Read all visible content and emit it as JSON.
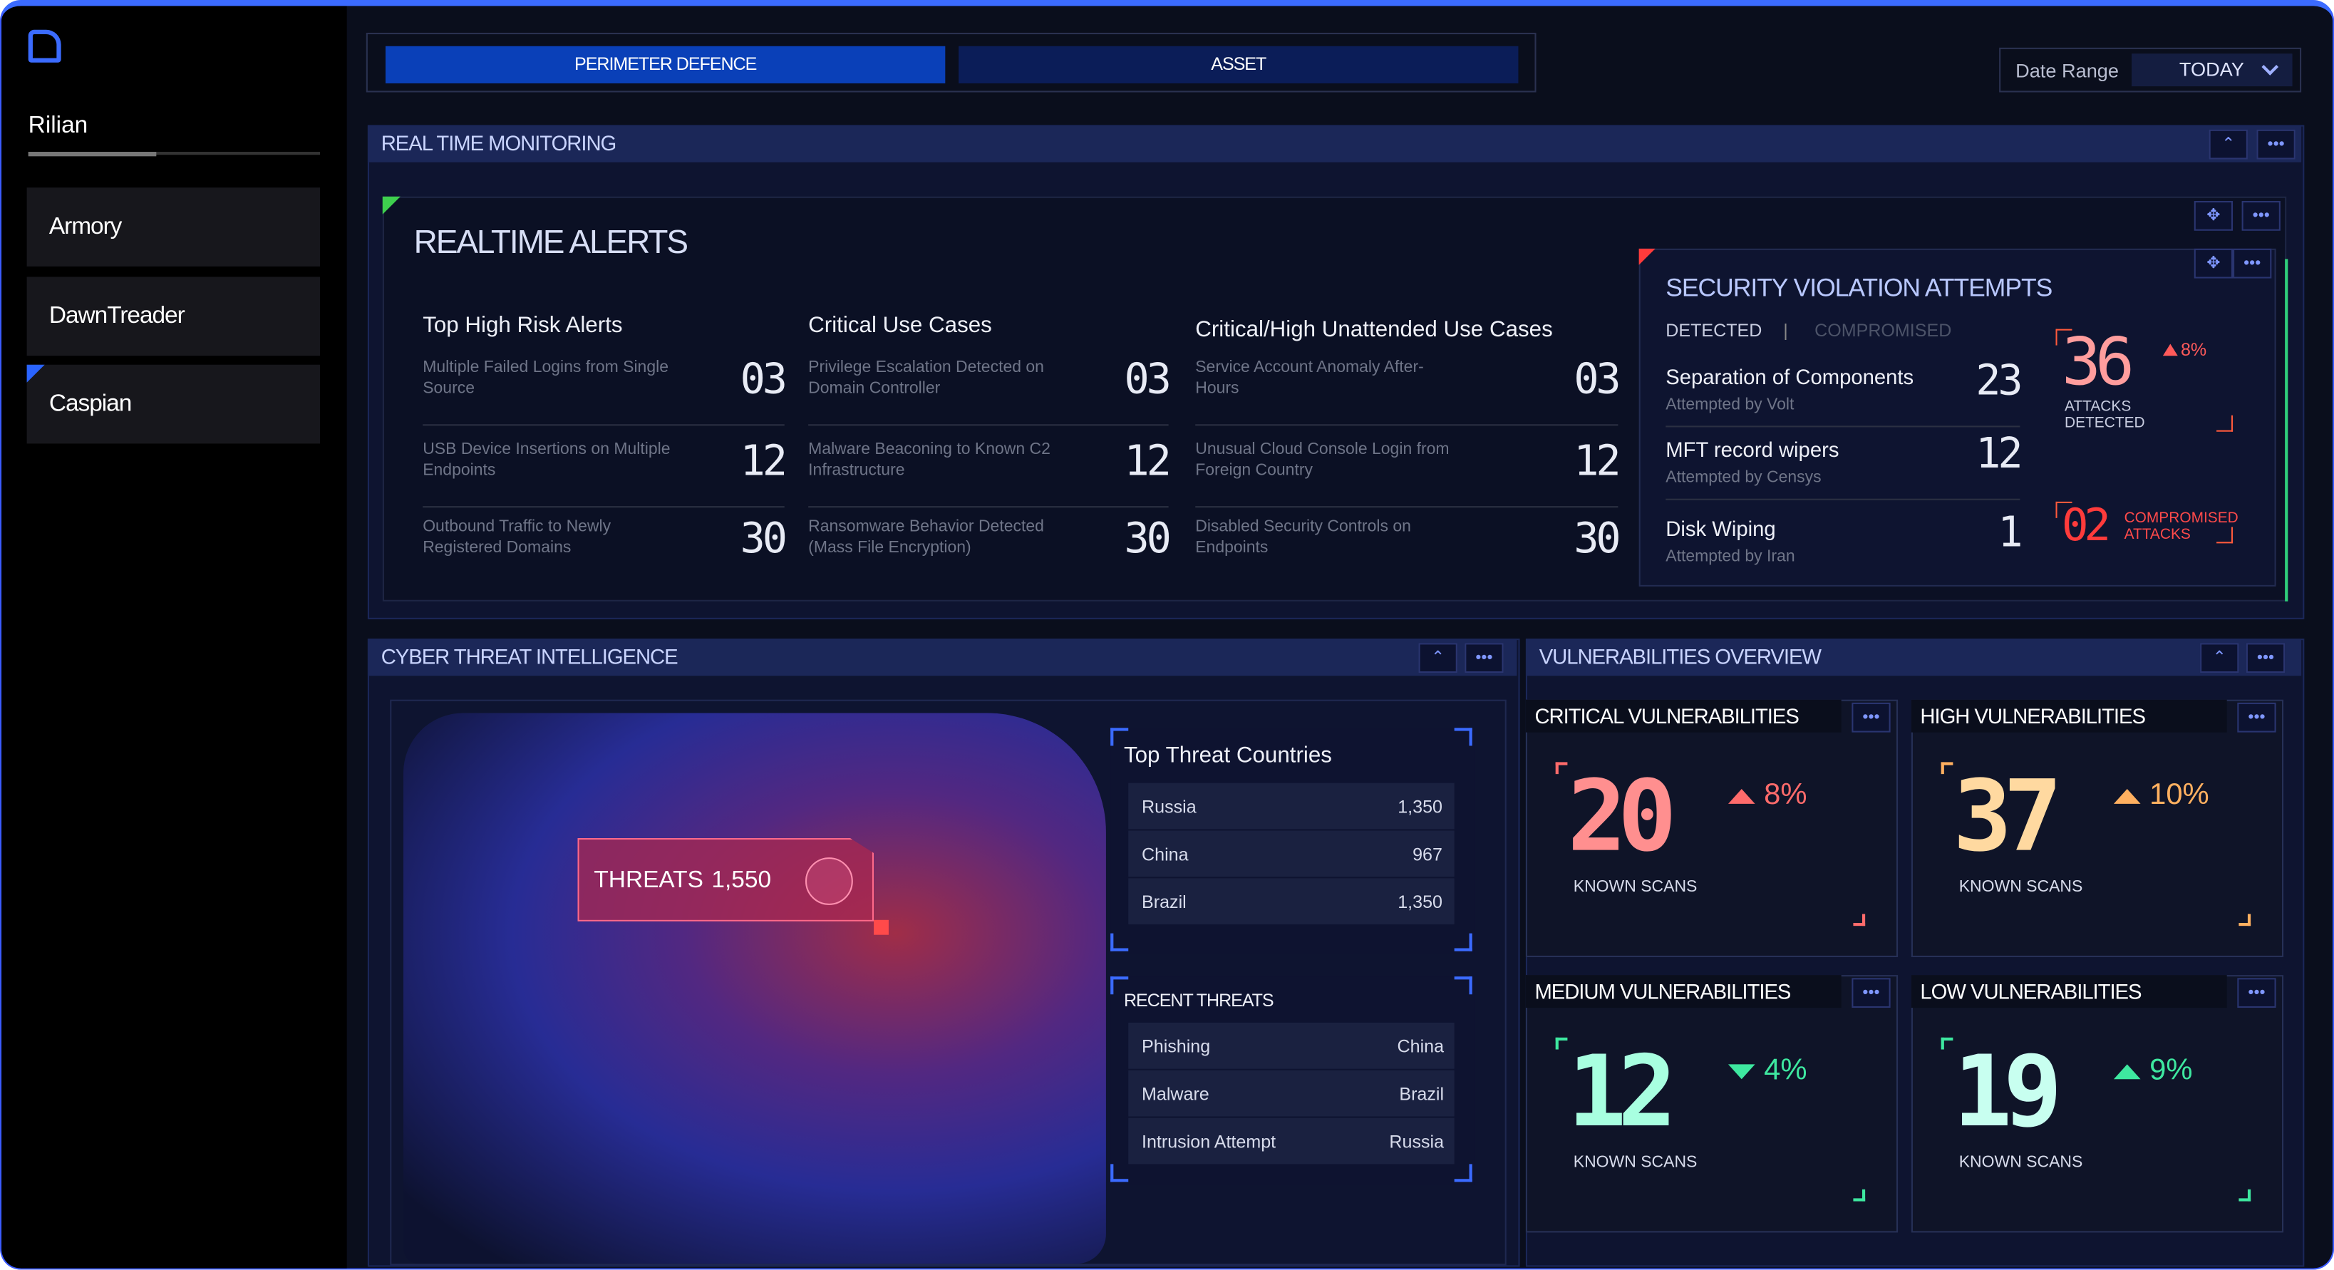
{
  "sidebar": {
    "brand": "Rilian",
    "items": [
      "Armory",
      "DawnTreader",
      "Caspian"
    ]
  },
  "tabs": [
    "PERIMETER DEFENCE",
    "ASSET"
  ],
  "date_range": {
    "label": "Date Range",
    "value": "TODAY"
  },
  "realtime_monitoring": {
    "title": "REAL TIME MONITORING",
    "alerts_title": "REALTIME ALERTS",
    "columns": [
      {
        "title": "Top High Risk Alerts",
        "items": [
          {
            "label": "Multiple Failed Logins from Single Source",
            "count": "03"
          },
          {
            "label": "USB Device Insertions on Multiple Endpoints",
            "count": "12"
          },
          {
            "label": "Outbound Traffic to Newly Registered Domains",
            "count": "30"
          }
        ]
      },
      {
        "title": "Critical Use Cases",
        "items": [
          {
            "label": "Privilege Escalation Detected on Domain Controller",
            "count": "03"
          },
          {
            "label": "Malware Beaconing to Known C2 Infrastructure",
            "count": "12"
          },
          {
            "label": "Ransomware Behavior Detected (Mass File Encryption)",
            "count": "30"
          }
        ]
      },
      {
        "title": "Critical/High Unattended Use Cases",
        "items": [
          {
            "label": "Service Account Anomaly After-Hours",
            "count": "03"
          },
          {
            "label": "Unusual Cloud Console Login from Foreign Country",
            "count": "12"
          },
          {
            "label": "Disabled Security Controls on Endpoints",
            "count": "30"
          }
        ]
      }
    ],
    "security": {
      "title": "SECURITY VIOLATION ATTEMPTS",
      "tabs": [
        "DETECTED",
        "COMPROMISED"
      ],
      "items": [
        {
          "name": "Separation of Components",
          "by": "Attempted by Volt",
          "count": "23"
        },
        {
          "name": "MFT record wipers",
          "by": "Attempted by Censys",
          "count": "12"
        },
        {
          "name": "Disk Wiping",
          "by": "Attempted by Iran",
          "count": "1"
        }
      ],
      "attacks": {
        "value": "36",
        "label": "ATTACKS DETECTED",
        "change": "8%"
      },
      "compromised": {
        "value": "02",
        "label": "COMPROMISED ATTACKS"
      }
    }
  },
  "cyber_threat": {
    "title": "CYBER THREAT INTELLIGENCE",
    "map_label": "THREATS",
    "map_value": "1,550",
    "top_countries": {
      "title": "Top Threat Countries",
      "rows": [
        [
          "Russia",
          "1,350"
        ],
        [
          "China",
          "967"
        ],
        [
          "Brazil",
          "1,350"
        ]
      ]
    },
    "recent": {
      "title": "RECENT THREATS",
      "rows": [
        [
          "Phishing",
          "China"
        ],
        [
          "Malware",
          "Brazil"
        ],
        [
          "Intrusion Attempt",
          "Russia"
        ]
      ]
    }
  },
  "vulnerabilities": {
    "title": "VULNERABILITIES OVERVIEW",
    "cards": [
      {
        "title": "CRITICAL VULNERABILITIES",
        "value": "20",
        "change": "8%",
        "label": "KNOWN SCANS",
        "direction": "up",
        "color": "#ff8f8f",
        "change_color": "#ff6b6b"
      },
      {
        "title": "HIGH VULNERABILITIES",
        "value": "37",
        "change": "10%",
        "label": "KNOWN SCANS",
        "direction": "up",
        "color": "#ffd9a0",
        "change_color": "#ffb060"
      },
      {
        "title": "MEDIUM VULNERABILITIES",
        "value": "12",
        "change": "4%",
        "label": "KNOWN SCANS",
        "direction": "down",
        "color": "#a8ffe0",
        "change_color": "#3ee8a0"
      },
      {
        "title": "LOW VULNERABILITIES",
        "value": "19",
        "change": "9%",
        "label": "KNOWN SCANS",
        "direction": "up",
        "color": "#c8fff0",
        "change_color": "#3ee8a0"
      }
    ]
  }
}
